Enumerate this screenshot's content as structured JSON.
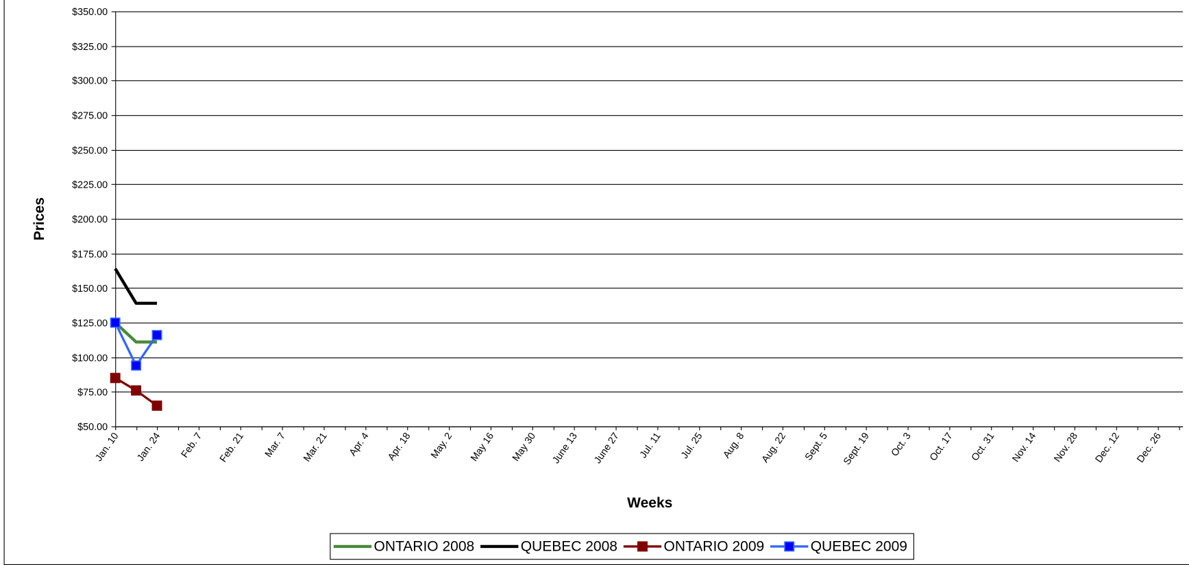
{
  "chart_data": {
    "type": "line",
    "x_label": "Weeks",
    "y_label": "Prices",
    "categories": [
      "Jan. 10",
      null,
      "Jan. 24",
      null,
      "Feb. 7",
      null,
      "Feb. 21",
      null,
      "Mar. 7",
      null,
      "Mar. 21",
      null,
      "Apr. 4",
      null,
      "Apr. 18",
      null,
      "May. 2",
      null,
      "May 16",
      null,
      "May 30",
      null,
      "June 13",
      null,
      "June 27",
      null,
      "Jul. 11",
      null,
      "Jul. 25",
      null,
      "Aug. 8",
      null,
      "Aug. 22",
      null,
      "Sept. 5",
      null,
      "Sept. 19",
      null,
      "Oct. 3",
      null,
      "Oct. 17",
      null,
      "Oct. 31",
      null,
      "Nov. 14",
      null,
      "Nov. 28",
      null,
      "Dec. 12",
      null,
      "Dec. 26",
      null
    ],
    "series": [
      {
        "name": "ONTARIO 2008",
        "color": "#4a8a3a",
        "marker": "none",
        "values": [
          125,
          111,
          111,
          null,
          null,
          null,
          null,
          null,
          null,
          null,
          null,
          null,
          null,
          null,
          null,
          null,
          null,
          null,
          null,
          null,
          null,
          null,
          null,
          null,
          null,
          null,
          null,
          null,
          null,
          null,
          null,
          null,
          null,
          null,
          null,
          null,
          null,
          null,
          null,
          null,
          null,
          null,
          null,
          null,
          null,
          null,
          null,
          null,
          null,
          null,
          null,
          null
        ]
      },
      {
        "name": "QUEBEC 2008",
        "color": "#000000",
        "marker": "none",
        "values": [
          164,
          139,
          139,
          null,
          null,
          null,
          null,
          null,
          null,
          null,
          null,
          null,
          null,
          null,
          null,
          null,
          null,
          null,
          null,
          null,
          null,
          null,
          null,
          null,
          null,
          null,
          null,
          null,
          null,
          null,
          null,
          null,
          null,
          null,
          null,
          null,
          null,
          null,
          null,
          null,
          null,
          null,
          null,
          null,
          null,
          null,
          null,
          null,
          null,
          null,
          null,
          null
        ]
      },
      {
        "name": "ONTARIO 2009",
        "color": "#800000",
        "marker": "square",
        "values": [
          85,
          76,
          65,
          null,
          null,
          null,
          null,
          null,
          null,
          null,
          null,
          null,
          null,
          null,
          null,
          null,
          null,
          null,
          null,
          null,
          null,
          null,
          null,
          null,
          null,
          null,
          null,
          null,
          null,
          null,
          null,
          null,
          null,
          null,
          null,
          null,
          null,
          null,
          null,
          null,
          null,
          null,
          null,
          null,
          null,
          null,
          null,
          null,
          null,
          null,
          null,
          null
        ]
      },
      {
        "name": "QUEBEC 2009",
        "color": "#3366ff",
        "marker": "square",
        "values": [
          125,
          94,
          116,
          null,
          null,
          null,
          null,
          null,
          null,
          null,
          null,
          null,
          null,
          null,
          null,
          null,
          null,
          null,
          null,
          null,
          null,
          null,
          null,
          null,
          null,
          null,
          null,
          null,
          null,
          null,
          null,
          null,
          null,
          null,
          null,
          null,
          null,
          null,
          null,
          null,
          null,
          null,
          null,
          null,
          null,
          null,
          null,
          null,
          null,
          null,
          null,
          null
        ]
      }
    ],
    "ylim": [
      50,
      350
    ],
    "yticks": [
      {
        "value": 50,
        "label": "$50.00"
      },
      {
        "value": 75,
        "label": "$75.00"
      },
      {
        "value": 100,
        "label": "$100.00"
      },
      {
        "value": 125,
        "label": "$125.00"
      },
      {
        "value": 150,
        "label": "$150.00"
      },
      {
        "value": 175,
        "label": "$175.00"
      },
      {
        "value": 200,
        "label": "$200.00"
      },
      {
        "value": 225,
        "label": "$225.00"
      },
      {
        "value": 250,
        "label": "$250.00"
      },
      {
        "value": 275,
        "label": "$275.00"
      },
      {
        "value": 300,
        "label": "$300.00"
      },
      {
        "value": 325,
        "label": "$325.00"
      },
      {
        "value": 350,
        "label": "$350.00"
      }
    ],
    "grid": true,
    "legend": "bottom"
  }
}
